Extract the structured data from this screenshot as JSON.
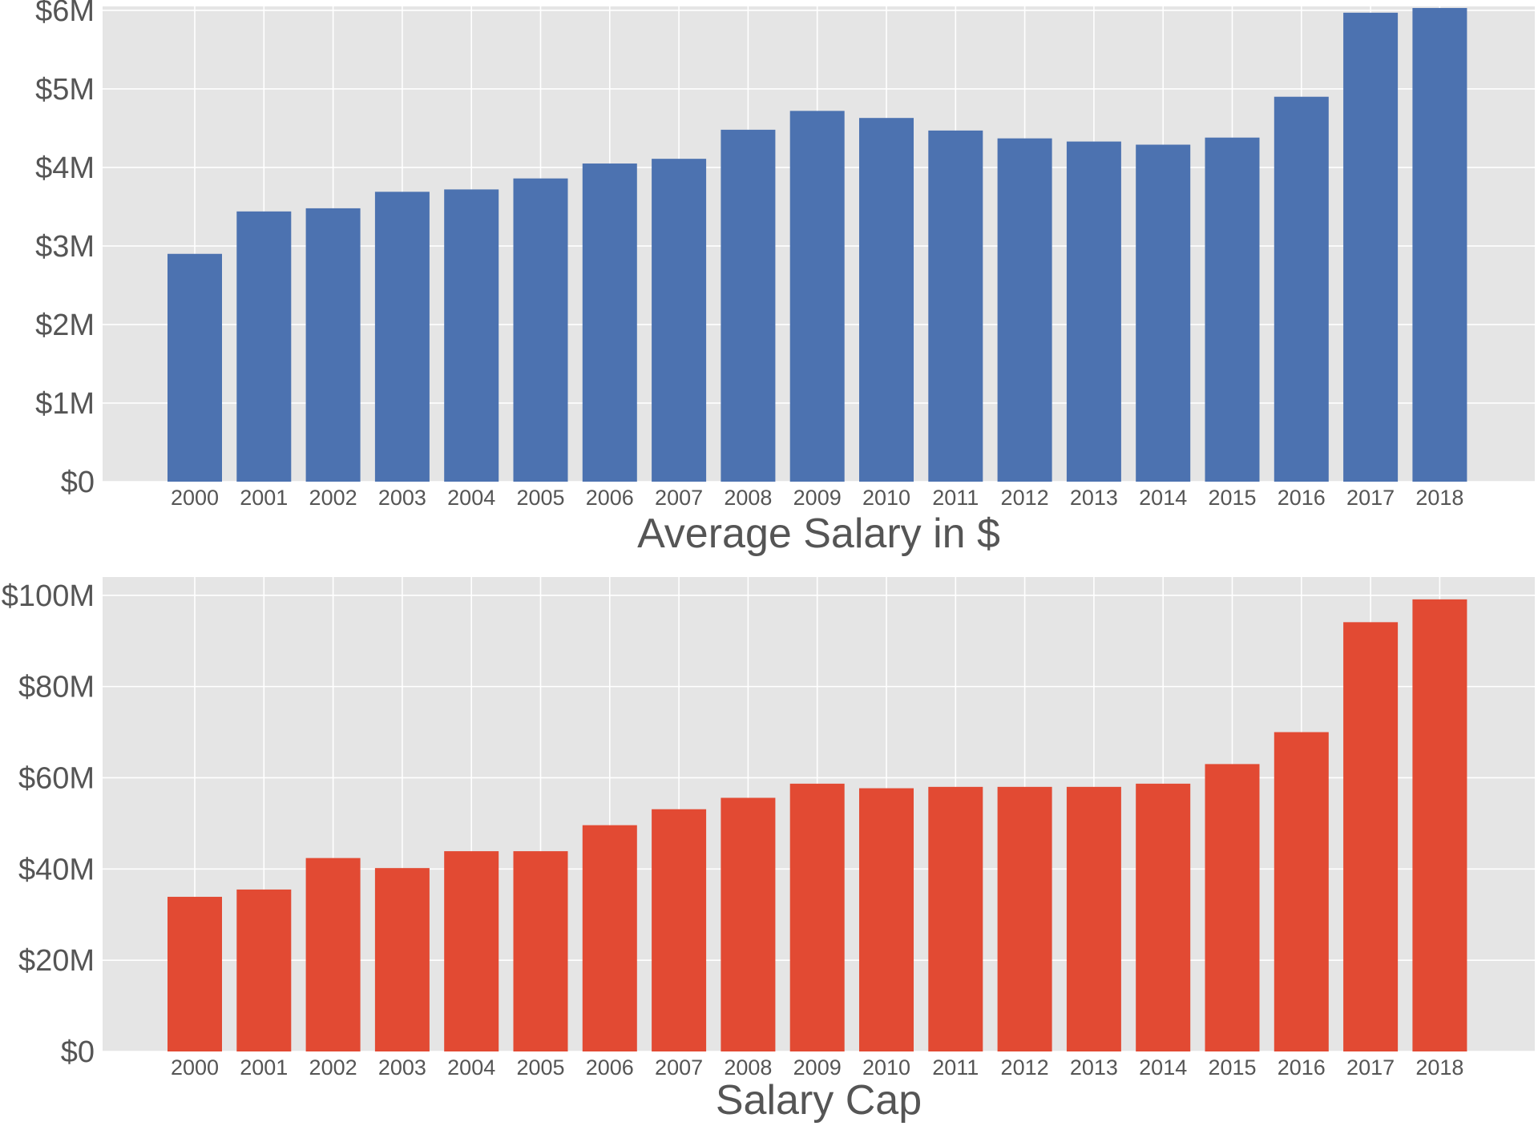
{
  "chart_data": [
    {
      "type": "bar",
      "xlabel": "Average Salary in $",
      "ylabel": "",
      "title": "",
      "color": "#4c72b0",
      "categories": [
        "2000",
        "2001",
        "2002",
        "2003",
        "2004",
        "2005",
        "2006",
        "2007",
        "2008",
        "2009",
        "2010",
        "2011",
        "2012",
        "2013",
        "2014",
        "2015",
        "2016",
        "2017",
        "2018"
      ],
      "values": [
        2900000,
        3440000,
        3480000,
        3690000,
        3720000,
        3860000,
        4050000,
        4110000,
        4480000,
        4720000,
        4630000,
        4470000,
        4370000,
        4330000,
        4290000,
        4380000,
        4900000,
        5970000,
        6030000
      ],
      "ylim": [
        0,
        6050000
      ],
      "yticks": [
        0,
        1000000,
        2000000,
        3000000,
        4000000,
        5000000,
        6000000
      ],
      "ytick_labels": [
        "$0",
        "$1M",
        "$2M",
        "$3M",
        "$4M",
        "$5M",
        "$6M"
      ],
      "grid": true
    },
    {
      "type": "bar",
      "xlabel": "Salary Cap",
      "ylabel": "",
      "title": "",
      "color": "#e24a33",
      "categories": [
        "2000",
        "2001",
        "2002",
        "2003",
        "2004",
        "2005",
        "2006",
        "2007",
        "2008",
        "2009",
        "2010",
        "2011",
        "2012",
        "2013",
        "2014",
        "2015",
        "2016",
        "2017",
        "2018"
      ],
      "values": [
        33900000,
        35500000,
        42400000,
        40200000,
        43900000,
        43900000,
        49600000,
        53100000,
        55600000,
        58700000,
        57700000,
        58000000,
        58000000,
        58000000,
        58700000,
        63000000,
        70000000,
        94100000,
        99100000
      ],
      "ylim": [
        0,
        104000000
      ],
      "yticks": [
        0,
        20000000,
        40000000,
        60000000,
        80000000,
        100000000
      ],
      "ytick_labels": [
        "$0",
        "$20M",
        "$40M",
        "$60M",
        "$80M",
        "$100M"
      ],
      "grid": true
    }
  ]
}
